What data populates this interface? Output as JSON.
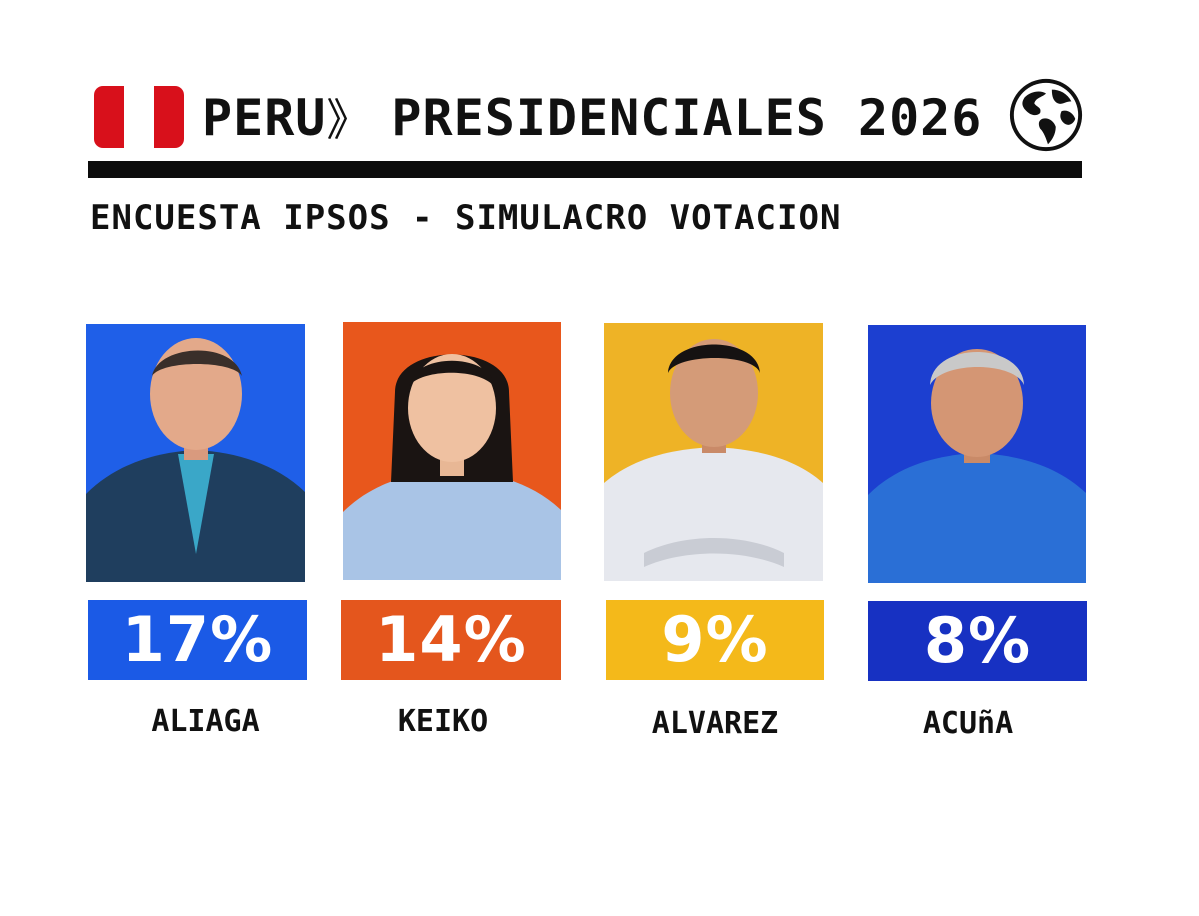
{
  "header": {
    "flag_icon": "peru-flag-icon",
    "country": "PERU",
    "separator": "》",
    "title": "PRESIDENCIALES 2026",
    "globe_icon": "globe-icon"
  },
  "subtitle": "ENCUESTA IPSOS - SIMULACRO VOTACION",
  "candidates": [
    {
      "name": "ALIAGA",
      "percent_label": "17%",
      "percent": 17,
      "color": "#1b5ae6",
      "photo_bg": "#1f5fe8"
    },
    {
      "name": "KEIKO",
      "percent_label": "14%",
      "percent": 14,
      "color": "#e4561d",
      "photo_bg": "#e8571c"
    },
    {
      "name": "ALVAREZ",
      "percent_label": "9%",
      "percent": 9,
      "color": "#f4b91a",
      "photo_bg": "#eeb326"
    },
    {
      "name": "ACUñA",
      "percent_label": "8%",
      "percent": 8,
      "color": "#1731c2",
      "photo_bg": "#1c3fd0"
    }
  ]
}
